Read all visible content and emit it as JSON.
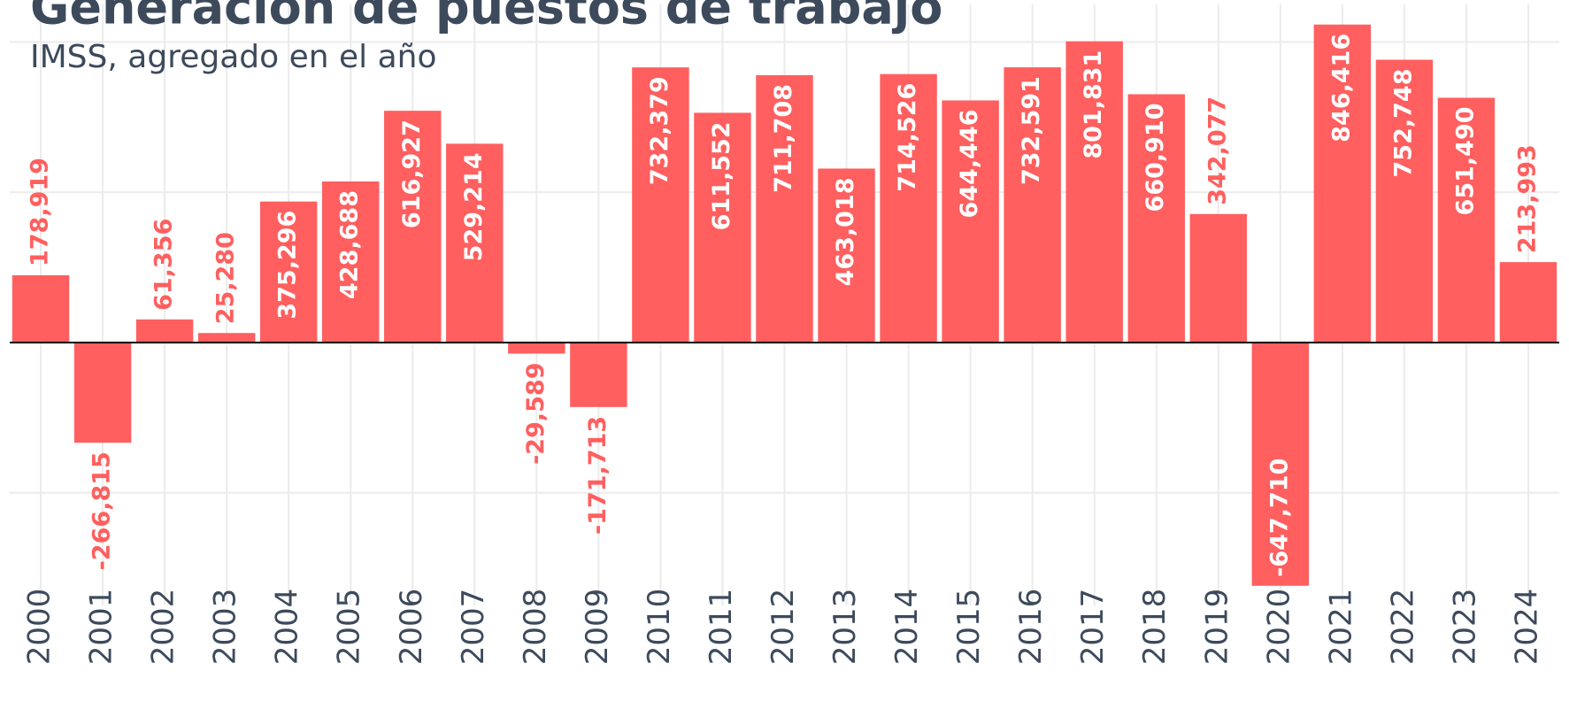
{
  "chart_data": {
    "type": "bar",
    "title": "Generación de puestos de trabajo",
    "subtitle": "IMSS, agregado en el año",
    "categories": [
      "2000",
      "2001",
      "2002",
      "2003",
      "2004",
      "2005",
      "2006",
      "2007",
      "2008",
      "2009",
      "2010",
      "2011",
      "2012",
      "2013",
      "2014",
      "2015",
      "2016",
      "2017",
      "2018",
      "2019",
      "2020",
      "2021",
      "2022",
      "2023",
      "2024"
    ],
    "values": [
      178919,
      -266815,
      61356,
      25280,
      375296,
      428688,
      616927,
      529214,
      -29589,
      -171713,
      732379,
      611552,
      711708,
      463018,
      714526,
      644446,
      732591,
      801831,
      660910,
      342077,
      -647710,
      846416,
      752748,
      651490,
      213993
    ],
    "value_labels": [
      "178,919",
      "-266,815",
      "61,356",
      "25,280",
      "375,296",
      "428,688",
      "616,927",
      "529,214",
      "-29,589",
      "-171,713",
      "732,379",
      "611,552",
      "711,708",
      "463,018",
      "714,526",
      "644,446",
      "732,591",
      "801,831",
      "660,910",
      "342,077",
      "-647,710",
      "846,416",
      "752,748",
      "651,490",
      "213,993"
    ],
    "color": "#ff5f5f",
    "ylim": [
      -700000,
      900000
    ],
    "yticks": [
      -400000,
      0,
      400000,
      800000
    ],
    "grid": true
  }
}
